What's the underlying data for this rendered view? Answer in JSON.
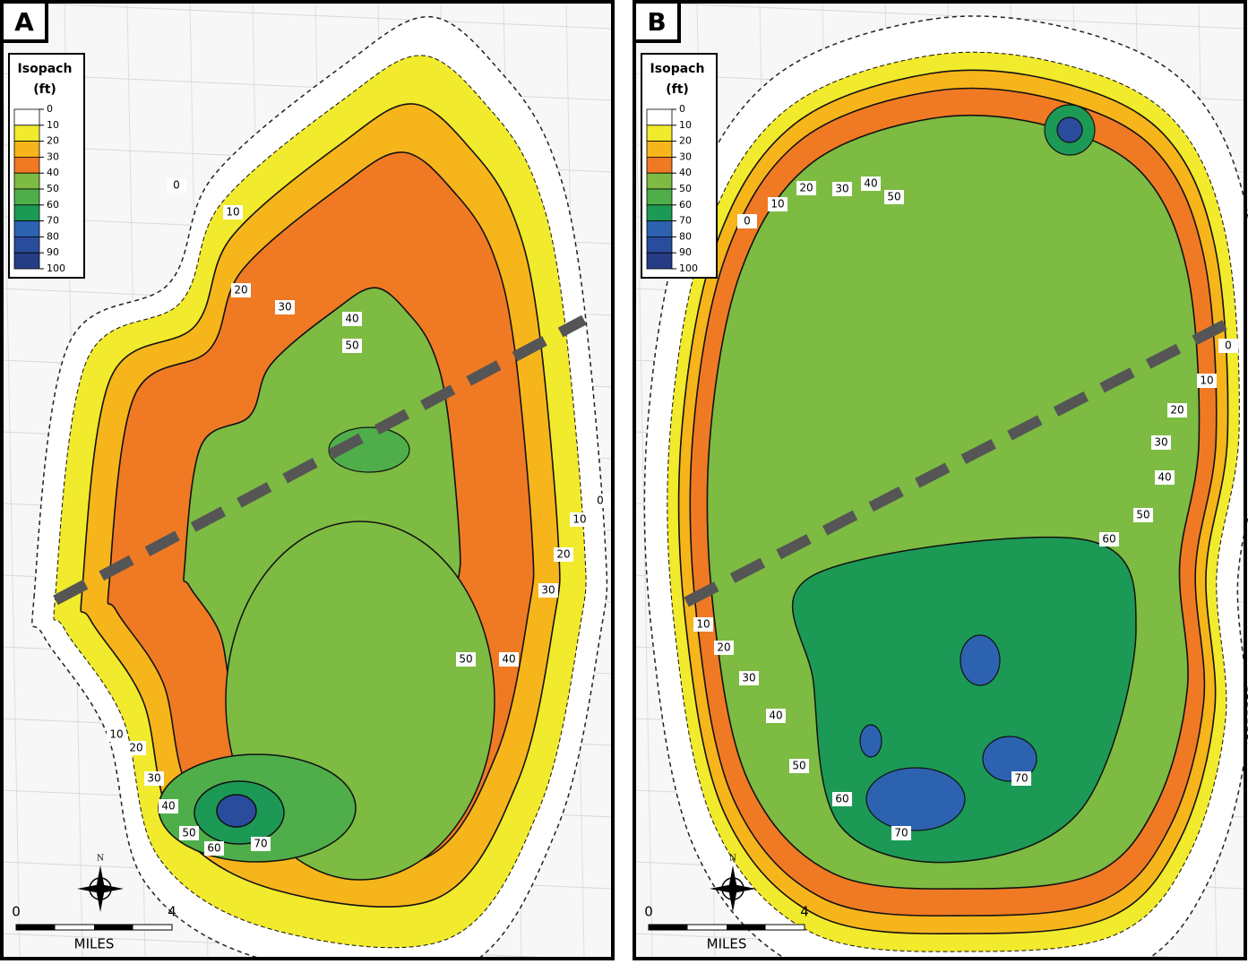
{
  "panels": [
    {
      "label": "A",
      "legend": {
        "title": "Isopach",
        "unit": "(ft)",
        "ticks": [
          0,
          10,
          20,
          30,
          40,
          50,
          60,
          70,
          80,
          90,
          100
        ],
        "colors": [
          "#ffffff",
          "#f2ea2c",
          "#f7b51c",
          "#f07a24",
          "#7dbb42",
          "#4fae4a",
          "#1c9a55",
          "#2d62b0",
          "#2a4c9c",
          "#263c84"
        ]
      },
      "contour_labels": [
        0,
        10,
        20,
        30,
        40,
        50,
        0,
        10,
        20,
        30,
        40,
        50,
        10,
        20,
        30,
        40,
        50,
        60,
        70
      ],
      "scale": {
        "start": 0,
        "end": 4,
        "unit": "MILES"
      },
      "north": "N"
    },
    {
      "label": "B",
      "legend": {
        "title": "Isopach",
        "unit": "(ft)",
        "ticks": [
          0,
          10,
          20,
          30,
          40,
          50,
          60,
          70,
          80,
          90,
          100
        ],
        "colors": [
          "#ffffff",
          "#f2ea2c",
          "#f7b51c",
          "#f07a24",
          "#7dbb42",
          "#4fae4a",
          "#1c9a55",
          "#2d62b0",
          "#2a4c9c",
          "#263c84"
        ]
      },
      "contour_labels": [
        0,
        10,
        20,
        30,
        40,
        50,
        0,
        10,
        20,
        30,
        40,
        50,
        60,
        10,
        20,
        30,
        40,
        50,
        60,
        70,
        70
      ],
      "scale": {
        "start": 0,
        "end": 4,
        "unit": "MILES"
      },
      "north": "N"
    }
  ]
}
